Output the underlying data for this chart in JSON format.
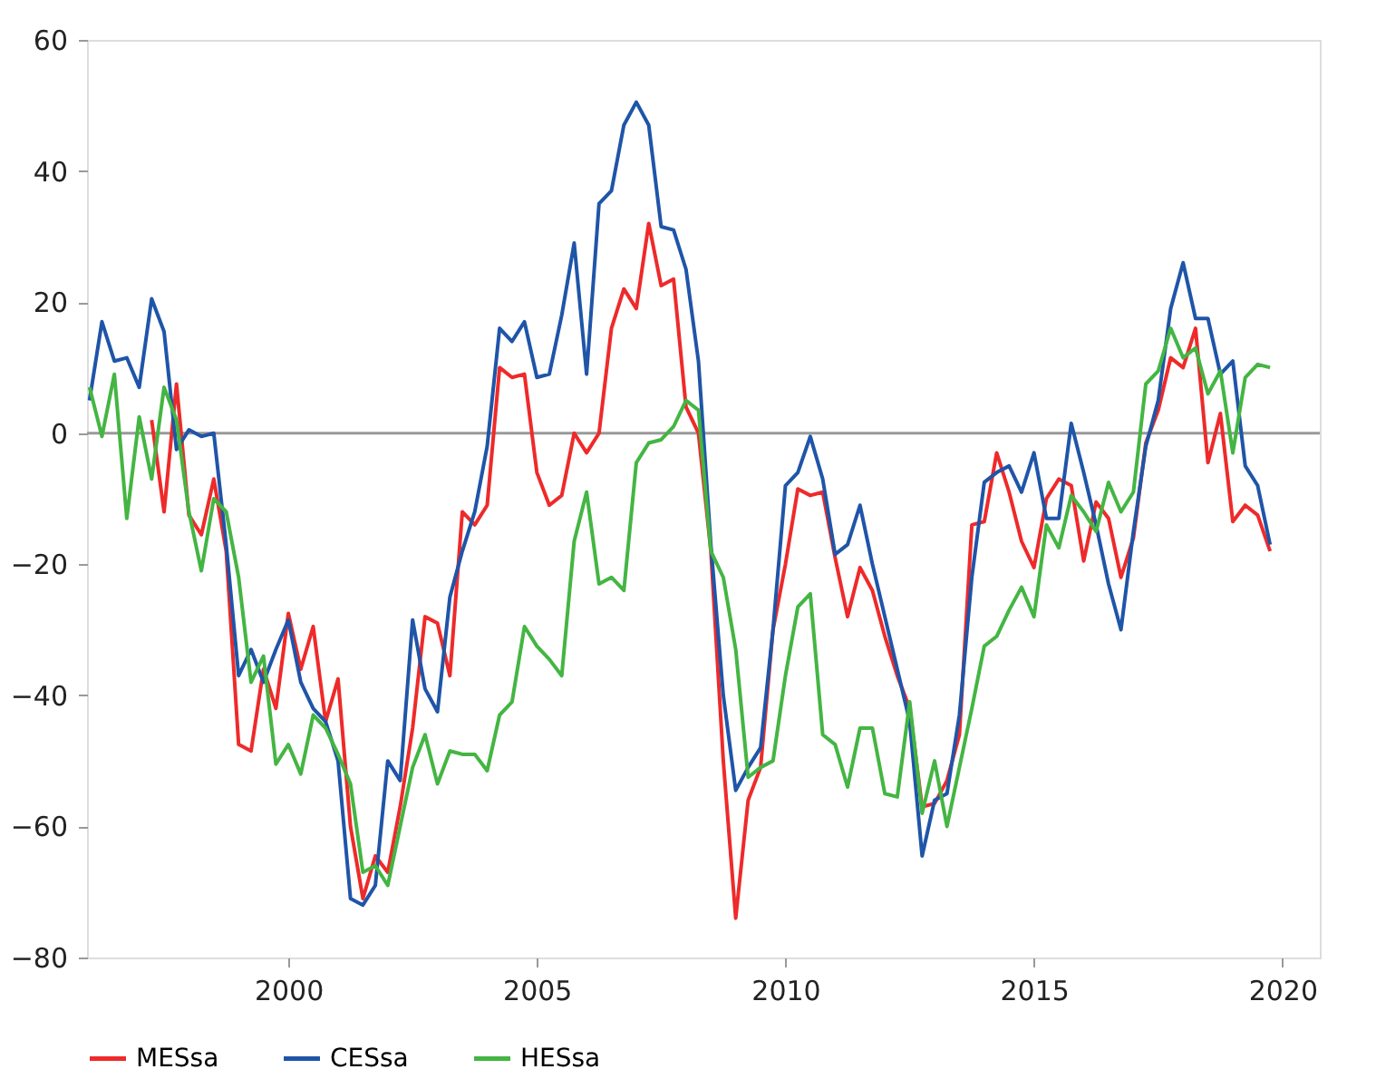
{
  "chart_data": {
    "type": "line",
    "x": [
      1996.0,
      1996.25,
      1996.5,
      1996.75,
      1997.0,
      1997.25,
      1997.5,
      1997.75,
      1998.0,
      1998.25,
      1998.5,
      1998.75,
      1999.0,
      1999.25,
      1999.5,
      1999.75,
      2000.0,
      2000.25,
      2000.5,
      2000.75,
      2001.0,
      2001.25,
      2001.5,
      2001.75,
      2002.0,
      2002.25,
      2002.5,
      2002.75,
      2003.0,
      2003.25,
      2003.5,
      2003.75,
      2004.0,
      2004.25,
      2004.5,
      2004.75,
      2005.0,
      2005.25,
      2005.5,
      2005.75,
      2006.0,
      2006.25,
      2006.5,
      2006.75,
      2007.0,
      2007.25,
      2007.5,
      2007.75,
      2008.0,
      2008.25,
      2008.5,
      2008.75,
      2009.0,
      2009.25,
      2009.5,
      2009.75,
      2010.0,
      2010.25,
      2010.5,
      2010.75,
      2011.0,
      2011.25,
      2011.5,
      2011.75,
      2012.0,
      2012.25,
      2012.5,
      2012.75,
      2013.0,
      2013.25,
      2013.5,
      2013.75,
      2014.0,
      2014.25,
      2014.5,
      2014.75,
      2015.0,
      2015.25,
      2015.5,
      2015.75,
      2016.0,
      2016.25,
      2016.5,
      2016.75,
      2017.0,
      2017.25,
      2017.5,
      2017.75,
      2018.0,
      2018.25,
      2018.5,
      2018.75,
      2019.0,
      2019.25,
      2019.5,
      2019.75
    ],
    "series": [
      {
        "name": "MESsa",
        "color": "#ee2a2a",
        "values": [
          null,
          null,
          null,
          null,
          null,
          2,
          -12,
          7.5,
          -12.5,
          -15.5,
          -7,
          -18,
          -47.5,
          -48.5,
          -36,
          -42,
          -27.5,
          -36,
          -29.5,
          -44,
          -37.5,
          -60,
          -71,
          -64.5,
          -67,
          -57,
          -45,
          -28,
          -29,
          -37,
          -12,
          -14,
          -11,
          10,
          8.5,
          9,
          -6,
          -11,
          -9.5,
          0,
          -3,
          0,
          16,
          22,
          19,
          32,
          22.5,
          23.5,
          4,
          0,
          -18,
          -50,
          -74,
          -56,
          -51,
          -30,
          -20,
          -8.5,
          -9.5,
          -9,
          -19,
          -28,
          -20.5,
          -24,
          -31,
          -37,
          -42,
          -57,
          -56.5,
          -53,
          -46,
          -14,
          -13.5,
          -3,
          -9,
          -16.5,
          -20.5,
          -10,
          -7,
          -8,
          -19.5,
          -10.5,
          -13,
          -22,
          -16,
          -1.5,
          3.5,
          11.5,
          10,
          16,
          -4.5,
          3,
          -13.5,
          -11,
          -12.5,
          -18
        ]
      },
      {
        "name": "CESsa",
        "color": "#1f55a8",
        "values": [
          5,
          17,
          11,
          11.5,
          7,
          20.5,
          15.5,
          -2.5,
          0.5,
          -0.5,
          0,
          -17,
          -37,
          -33,
          -38,
          -33,
          -28.5,
          -38,
          -42,
          -44,
          -50,
          -71,
          -72,
          -69,
          -50,
          -53,
          -28.5,
          -39,
          -42.5,
          -25,
          -18,
          -12,
          -2,
          16,
          14,
          17,
          8.5,
          9,
          18,
          29,
          9,
          35,
          37,
          47,
          50.5,
          47,
          31.5,
          31,
          25,
          11,
          -17,
          -40,
          -54.5,
          -51,
          -48,
          -30,
          -8,
          -6,
          -0.5,
          -7,
          -18.5,
          -17,
          -11,
          -20,
          -28,
          -36,
          -44,
          -64.5,
          -56,
          -55,
          -43,
          -22,
          -7.5,
          -6,
          -5,
          -9,
          -3,
          -13,
          -13,
          1.5,
          -6,
          -14,
          -23,
          -30,
          -15,
          -2,
          5,
          19,
          26,
          17.5,
          17.5,
          9,
          11,
          -5,
          -8,
          -17
        ]
      },
      {
        "name": "HESsa",
        "color": "#44b543",
        "values": [
          7,
          -0.5,
          9,
          -13,
          2.5,
          -7,
          7,
          2,
          -12,
          -21,
          -10,
          -12,
          -22,
          -38,
          -34,
          -50.5,
          -47.5,
          -52,
          -43,
          -45,
          -49,
          -53.5,
          -67,
          -66,
          -69,
          -60,
          -51,
          -46,
          -53.5,
          -48.5,
          -49,
          -49,
          -51.5,
          -43,
          -41,
          -29.5,
          -32.5,
          -34.5,
          -37,
          -16.5,
          -9,
          -23,
          -22,
          -24,
          -4.5,
          -1.5,
          -1,
          1,
          5,
          3.5,
          -18,
          -22,
          -33,
          -52.5,
          -51,
          -50,
          -37,
          -26.5,
          -24.5,
          -46,
          -47.5,
          -54,
          -45,
          -45,
          -55,
          -55.5,
          -41,
          -58,
          -50,
          -60,
          -51,
          -42,
          -32.5,
          -31,
          -27,
          -23.5,
          -28,
          -14,
          -17.5,
          -9.5,
          -12,
          -15,
          -7.5,
          -12,
          -9,
          7.5,
          9.5,
          16,
          11.5,
          13,
          6,
          9.5,
          -3,
          8.5,
          10.5,
          10
        ]
      }
    ],
    "xlim": [
      1995.95,
      2020.75
    ],
    "xticks": [
      2000,
      2005,
      2010,
      2015,
      2020
    ],
    "ylim": [
      -80,
      60
    ],
    "yticks": [
      -80,
      -60,
      -40,
      -20,
      0,
      20,
      40,
      60
    ],
    "ref_lines": [
      {
        "axis": "y",
        "value": 0,
        "color": "#999999"
      }
    ],
    "legend": "bottom",
    "line_style": "solid",
    "marker": "none"
  }
}
